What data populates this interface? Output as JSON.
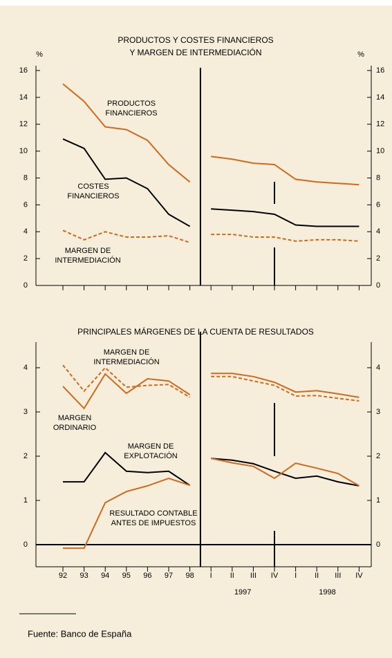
{
  "chart_data": [
    {
      "type": "line",
      "title": [
        "PRODUCTOS Y COSTES FINANCIEROS",
        "Y MARGEN DE INTERMEDIACIÓN"
      ],
      "ylabel": "%",
      "y2label": "%",
      "ylim": [
        0,
        16
      ],
      "yticks": [
        0,
        2,
        4,
        6,
        8,
        10,
        12,
        14,
        16
      ],
      "break_after": 6,
      "series": [
        {
          "name": [
            "PRODUCTOS",
            "FINANCIEROS"
          ],
          "color": "#d0691e",
          "dash": false,
          "values": [
            15.0,
            13.7,
            11.8,
            11.6,
            10.8,
            9.0,
            7.7,
            9.6,
            9.4,
            9.1,
            9.0,
            7.9,
            7.7,
            7.6,
            7.5
          ]
        },
        {
          "name": [
            "COSTES",
            "FINANCIEROS"
          ],
          "color": "#000000",
          "dash": false,
          "values": [
            10.9,
            10.2,
            7.9,
            8.0,
            7.2,
            5.3,
            4.4,
            5.7,
            5.6,
            5.5,
            5.3,
            4.5,
            4.4,
            4.4,
            4.4
          ]
        },
        {
          "name": [
            "MARGEN DE",
            "INTERMEDIACIÓN"
          ],
          "color": "#d0691e",
          "dash": true,
          "values": [
            4.1,
            3.4,
            4.0,
            3.6,
            3.6,
            3.7,
            3.2,
            3.8,
            3.8,
            3.6,
            3.6,
            3.3,
            3.4,
            3.4,
            3.3
          ]
        }
      ]
    },
    {
      "type": "line",
      "title": [
        "PRINCIPALES MÁRGENES DE LA CUENTA DE RESULTADOS"
      ],
      "categories": [
        "92",
        "93",
        "94",
        "95",
        "96",
        "97",
        "98",
        "I",
        "II",
        "III",
        "IV",
        "I",
        "II",
        "III",
        "IV"
      ],
      "groups": [
        "1997",
        "1998"
      ],
      "ylim": [
        -0.5,
        4.6
      ],
      "yticks": [
        0,
        1,
        2,
        3,
        4
      ],
      "zero_line": true,
      "break_after": 6,
      "series": [
        {
          "name": [
            "MARGEN DE",
            "INTERMEDIACIÓN"
          ],
          "color": "#d0691e",
          "dash": true,
          "values": [
            4.06,
            3.47,
            4.0,
            3.56,
            3.6,
            3.62,
            3.33,
            3.8,
            3.8,
            3.7,
            3.6,
            3.36,
            3.37,
            3.31,
            3.25
          ]
        },
        {
          "name": [
            "MARGEN",
            "ORDINARIO"
          ],
          "color": "#d0691e",
          "dash": false,
          "values": [
            3.58,
            3.08,
            3.86,
            3.42,
            3.75,
            3.7,
            3.39,
            3.87,
            3.87,
            3.8,
            3.67,
            3.45,
            3.48,
            3.41,
            3.33
          ]
        },
        {
          "name": [
            "MARGEN DE",
            "EXPLOTACIÓN"
          ],
          "color": "#000000",
          "dash": false,
          "values": [
            1.42,
            1.42,
            2.08,
            1.66,
            1.63,
            1.66,
            1.34,
            1.95,
            1.91,
            1.83,
            1.66,
            1.5,
            1.55,
            1.42,
            1.33
          ]
        },
        {
          "name": [
            "RESULTADO CONTABLE",
            "ANTES DE IMPUESTOS"
          ],
          "color": "#d0691e",
          "dash": false,
          "values": [
            -0.08,
            -0.08,
            0.95,
            1.2,
            1.33,
            1.5,
            1.34,
            1.95,
            1.85,
            1.77,
            1.5,
            1.84,
            1.73,
            1.61,
            1.33
          ]
        }
      ]
    }
  ],
  "footer": {
    "source": "Fuente:  Banco de España"
  }
}
